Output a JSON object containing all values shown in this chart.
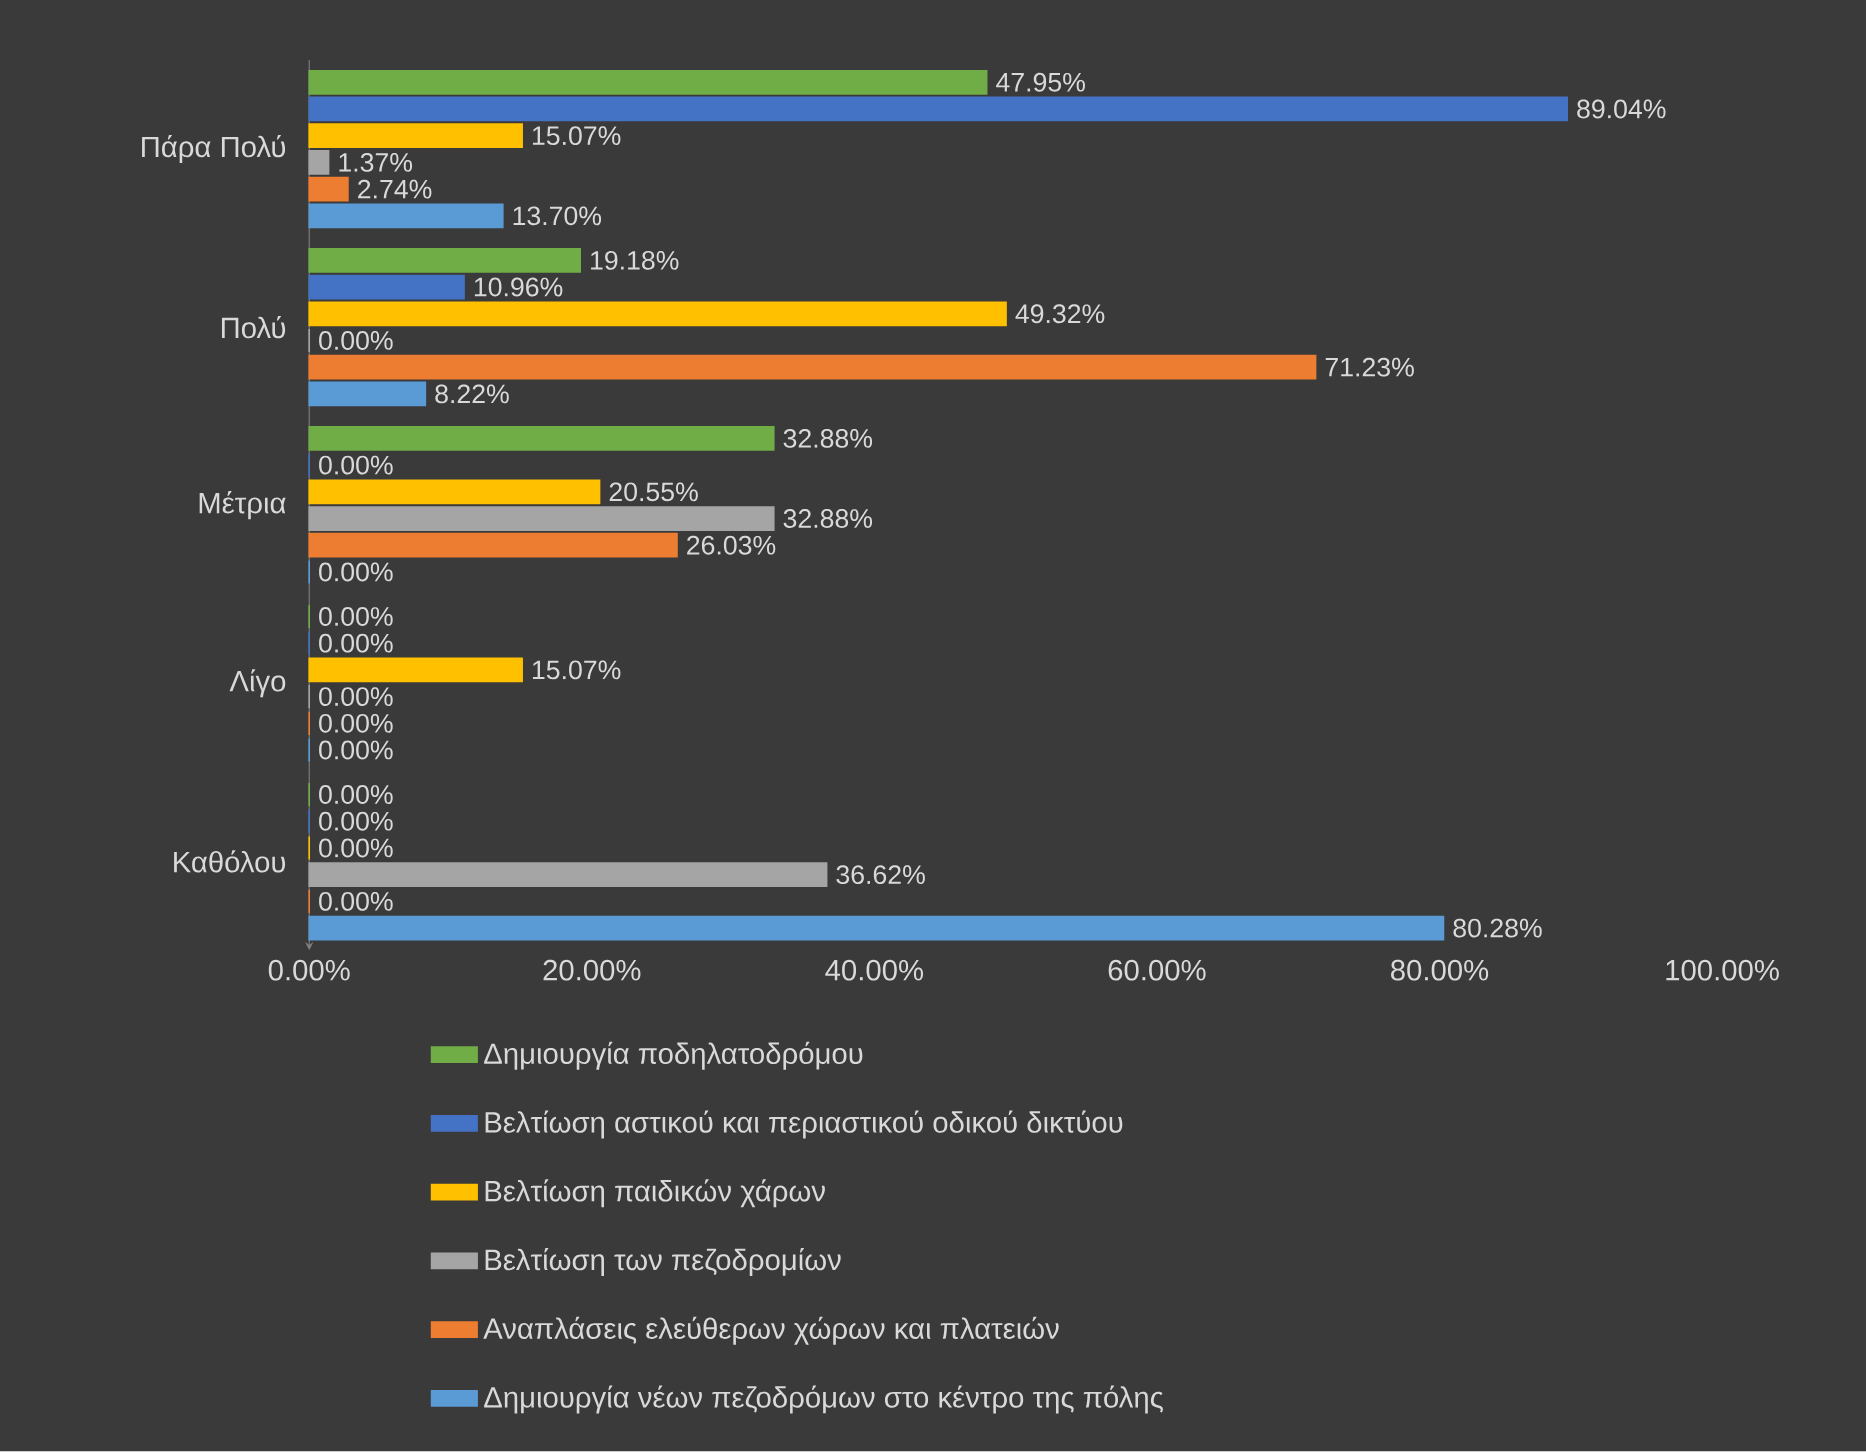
{
  "chart_data": {
    "type": "bar",
    "orientation": "horizontal",
    "categories": [
      "Πάρα Πολύ",
      "Πολύ",
      "Μέτρια",
      "Λίγο",
      "Καθόλου"
    ],
    "series": [
      {
        "name": "Δημιουργία ποδηλατοδρόμου",
        "color": "#70ad47",
        "values": [
          47.95,
          19.18,
          32.88,
          0.0,
          0.0
        ],
        "value_labels": [
          "47.95%",
          "19.18%",
          "32.88%",
          "0.00%",
          "0.00%"
        ]
      },
      {
        "name": "Βελτίωση αστικού και περιαστικού οδικού δικτύου",
        "color": "#4472c4",
        "values": [
          89.04,
          10.96,
          0.0,
          0.0,
          0.0
        ],
        "value_labels": [
          "89.04%",
          "10.96%",
          "0.00%",
          "0.00%",
          "0.00%"
        ]
      },
      {
        "name": "Βελτίωση παιδικών χάρων",
        "color": "#ffc000",
        "values": [
          15.07,
          49.32,
          20.55,
          15.07,
          0.0
        ],
        "value_labels": [
          "15.07%",
          "49.32%",
          "20.55%",
          "15.07%",
          "0.00%"
        ]
      },
      {
        "name": "Βελτίωση των πεζοδρομίων",
        "color": "#a5a5a5",
        "values": [
          1.37,
          0.0,
          32.88,
          0.0,
          36.62
        ],
        "value_labels": [
          "1.37%",
          "0.00%",
          "32.88%",
          "0.00%",
          "36.62%"
        ]
      },
      {
        "name": "Αναπλάσεις ελεύθερων χώρων και πλατειών",
        "color": "#ed7d31",
        "values": [
          2.74,
          71.23,
          26.03,
          0.0,
          0.0
        ],
        "value_labels": [
          "2.74%",
          "71.23%",
          "26.03%",
          "0.00%",
          "0.00%"
        ]
      },
      {
        "name": "Δημιουργία νέων πεζοδρόμων στο κέντρο της πόλης",
        "color": "#5b9bd5",
        "values": [
          13.7,
          8.22,
          0.0,
          0.0,
          80.28
        ],
        "value_labels": [
          "13.70%",
          "8.22%",
          "0.00%",
          "0.00%",
          "80.28%"
        ]
      }
    ],
    "xlim": [
      0,
      100
    ],
    "xticks": [
      {
        "value": 0,
        "label": "0.00%"
      },
      {
        "value": 20,
        "label": "20.00%"
      },
      {
        "value": 40,
        "label": "40.00%"
      },
      {
        "value": 60,
        "label": "60.00%"
      },
      {
        "value": 80,
        "label": "80.00%"
      },
      {
        "value": 100,
        "label": "100.00%"
      }
    ],
    "legend": "bottom"
  }
}
